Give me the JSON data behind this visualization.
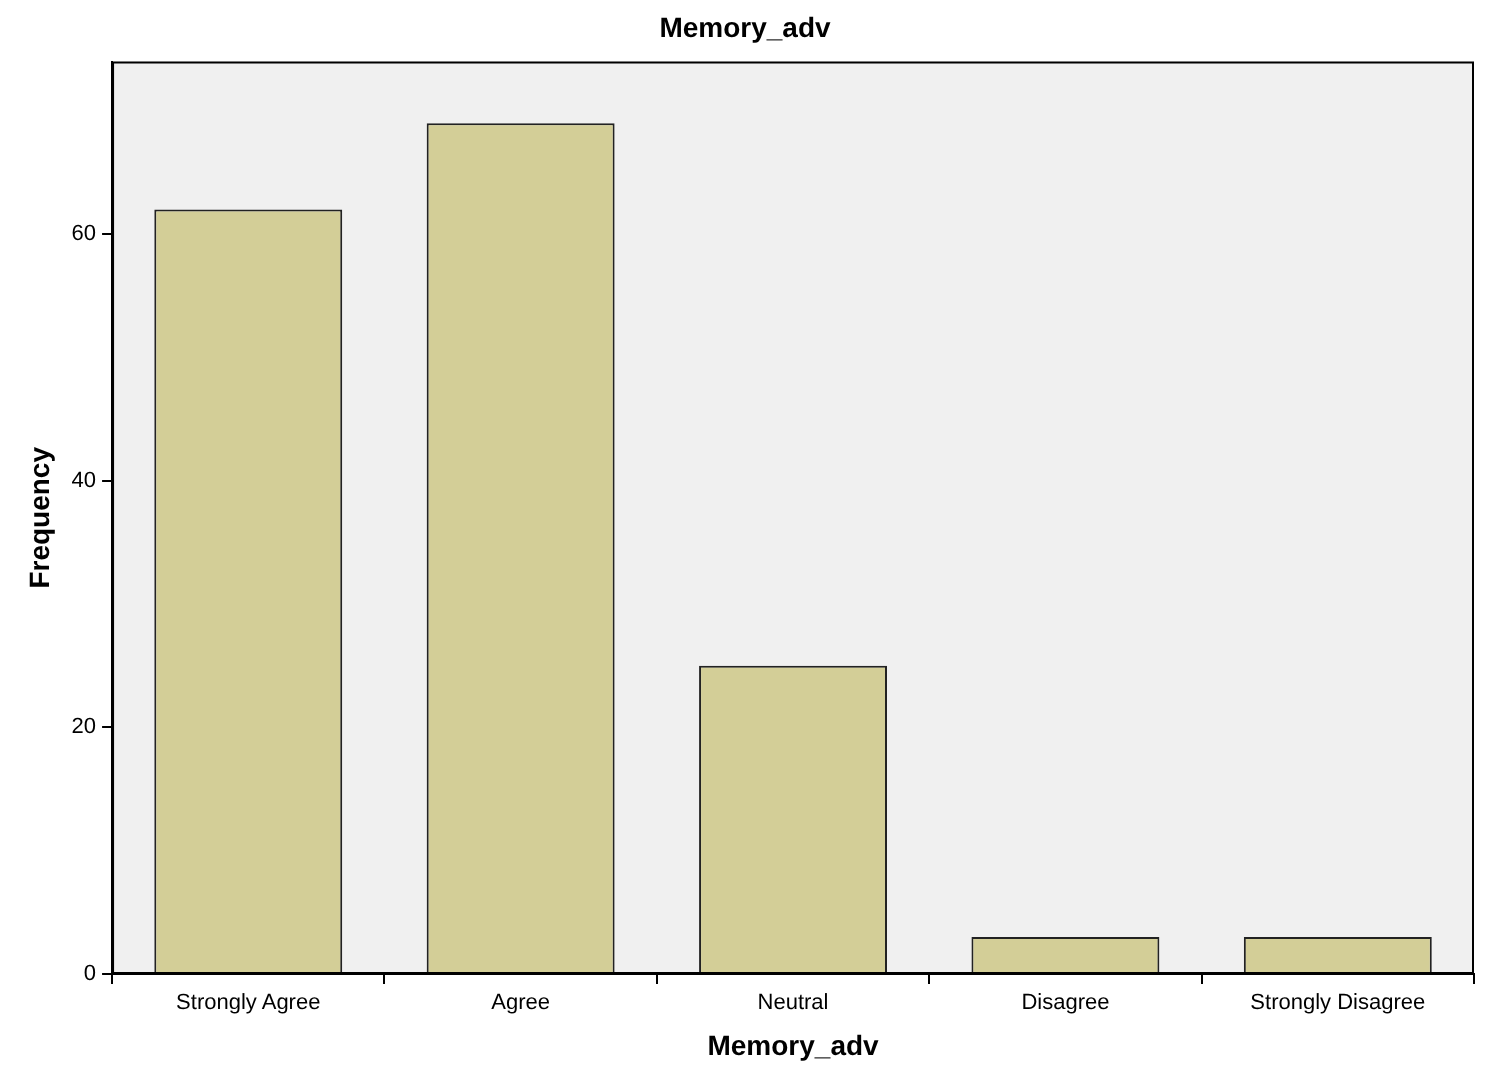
{
  "chart_data": {
    "type": "bar",
    "title": "Memory_adv",
    "xlabel": "Memory_adv",
    "ylabel": "Frequency",
    "categories": [
      "Strongly Agree",
      "Agree",
      "Neutral",
      "Disagree",
      "Strongly Disagree"
    ],
    "values": [
      62,
      69,
      25,
      3,
      3
    ],
    "color": "#d3ce97",
    "ylim": [
      0,
      74
    ],
    "yticks": [
      0,
      20,
      40,
      60
    ]
  }
}
